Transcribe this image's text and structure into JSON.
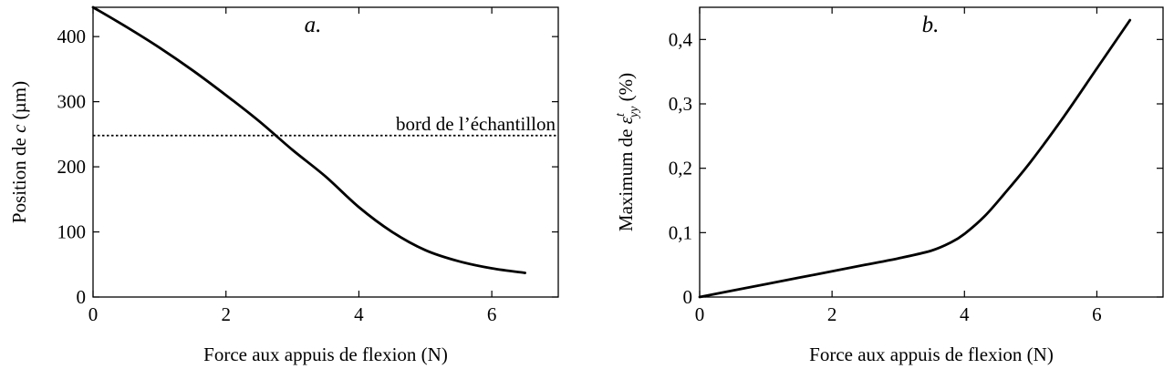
{
  "chart_data": [
    {
      "type": "line",
      "panel_label": "a.",
      "xlabel": "Force aux appuis de flexion (N)",
      "ylabel_prefix": "Position de ",
      "ylabel_var": "c",
      "ylabel_suffix": " (µm)",
      "xlim": [
        0,
        7
      ],
      "ylim": [
        0,
        445
      ],
      "x_ticks": [
        0,
        2,
        4,
        6
      ],
      "x_tick_labels": [
        "0",
        "2",
        "4",
        "6"
      ],
      "y_ticks": [
        0,
        100,
        200,
        300,
        400
      ],
      "y_tick_labels": [
        "0",
        "100",
        "200",
        "300",
        "400"
      ],
      "series": [
        {
          "x": [
            0,
            0.5,
            1,
            1.5,
            2,
            2.5,
            3,
            3.5,
            4,
            4.5,
            5,
            5.5,
            6,
            6.5
          ],
          "y": [
            445,
            415,
            383,
            348,
            310,
            270,
            226,
            185,
            138,
            100,
            72,
            55,
            44,
            37
          ]
        }
      ],
      "hline": {
        "y": 248,
        "label": "bord de l’échantillon"
      },
      "grid": false
    },
    {
      "type": "line",
      "panel_label": "b.",
      "xlabel": "Force aux appuis de flexion (N)",
      "ylabel_prefix": "Maximum de ",
      "ylabel_var": "ε",
      "ylabel_sub": "yy",
      "ylabel_sup": "t",
      "ylabel_suffix": " (%)",
      "xlim": [
        0,
        7
      ],
      "ylim": [
        0,
        0.45
      ],
      "x_ticks": [
        0,
        2,
        4,
        6
      ],
      "x_tick_labels": [
        "0",
        "2",
        "4",
        "6"
      ],
      "y_ticks": [
        0,
        0.1,
        0.2,
        0.3,
        0.4
      ],
      "y_tick_labels": [
        "0",
        "0,1",
        "0,2",
        "0,3",
        "0,4"
      ],
      "series": [
        {
          "x": [
            0,
            0.5,
            1,
            1.5,
            2,
            2.5,
            3,
            3.5,
            3.8,
            4,
            4.3,
            4.6,
            5,
            5.5,
            6,
            6.5
          ],
          "y": [
            0,
            0.01,
            0.02,
            0.03,
            0.04,
            0.05,
            0.06,
            0.072,
            0.085,
            0.098,
            0.125,
            0.16,
            0.21,
            0.28,
            0.355,
            0.43
          ]
        }
      ],
      "grid": false
    }
  ]
}
